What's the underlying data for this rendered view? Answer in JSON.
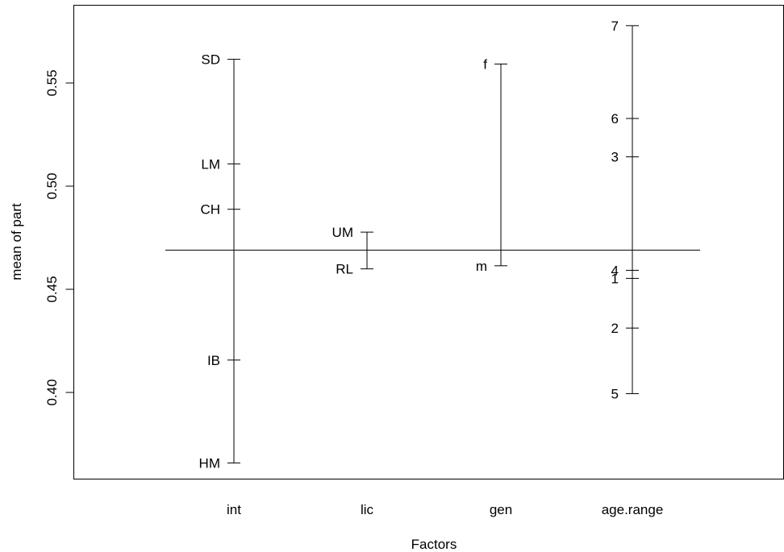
{
  "chart_data": {
    "type": "design-plot",
    "xlabel": "Factors",
    "ylabel": "mean of part",
    "ylim": [
      0.357,
      0.585
    ],
    "yticks": [
      0.4,
      0.45,
      0.5,
      0.55
    ],
    "ytick_labels": [
      "0.40",
      "0.45",
      "0.50",
      "0.55"
    ],
    "grand_mean": 0.469,
    "factors": [
      {
        "name": "int",
        "levels": [
          {
            "label": "SD",
            "value": 0.5615
          },
          {
            "label": "LM",
            "value": 0.5108
          },
          {
            "label": "CH",
            "value": 0.4888
          },
          {
            "label": "IB",
            "value": 0.4157
          },
          {
            "label": "HM",
            "value": 0.3658
          }
        ]
      },
      {
        "name": "lic",
        "levels": [
          {
            "label": "UM",
            "value": 0.4777
          },
          {
            "label": "RL",
            "value": 0.4599
          }
        ]
      },
      {
        "name": "gen",
        "levels": [
          {
            "label": "f",
            "value": 0.5592
          },
          {
            "label": "m",
            "value": 0.4614
          }
        ]
      },
      {
        "name": "age.range",
        "levels": [
          {
            "label": "7",
            "value": 0.5778
          },
          {
            "label": "6",
            "value": 0.5328
          },
          {
            "label": "3",
            "value": 0.5142
          },
          {
            "label": "4",
            "value": 0.4592
          },
          {
            "label": "1",
            "value": 0.4553
          },
          {
            "label": "2",
            "value": 0.4312
          },
          {
            "label": "5",
            "value": 0.3994
          }
        ]
      }
    ]
  }
}
